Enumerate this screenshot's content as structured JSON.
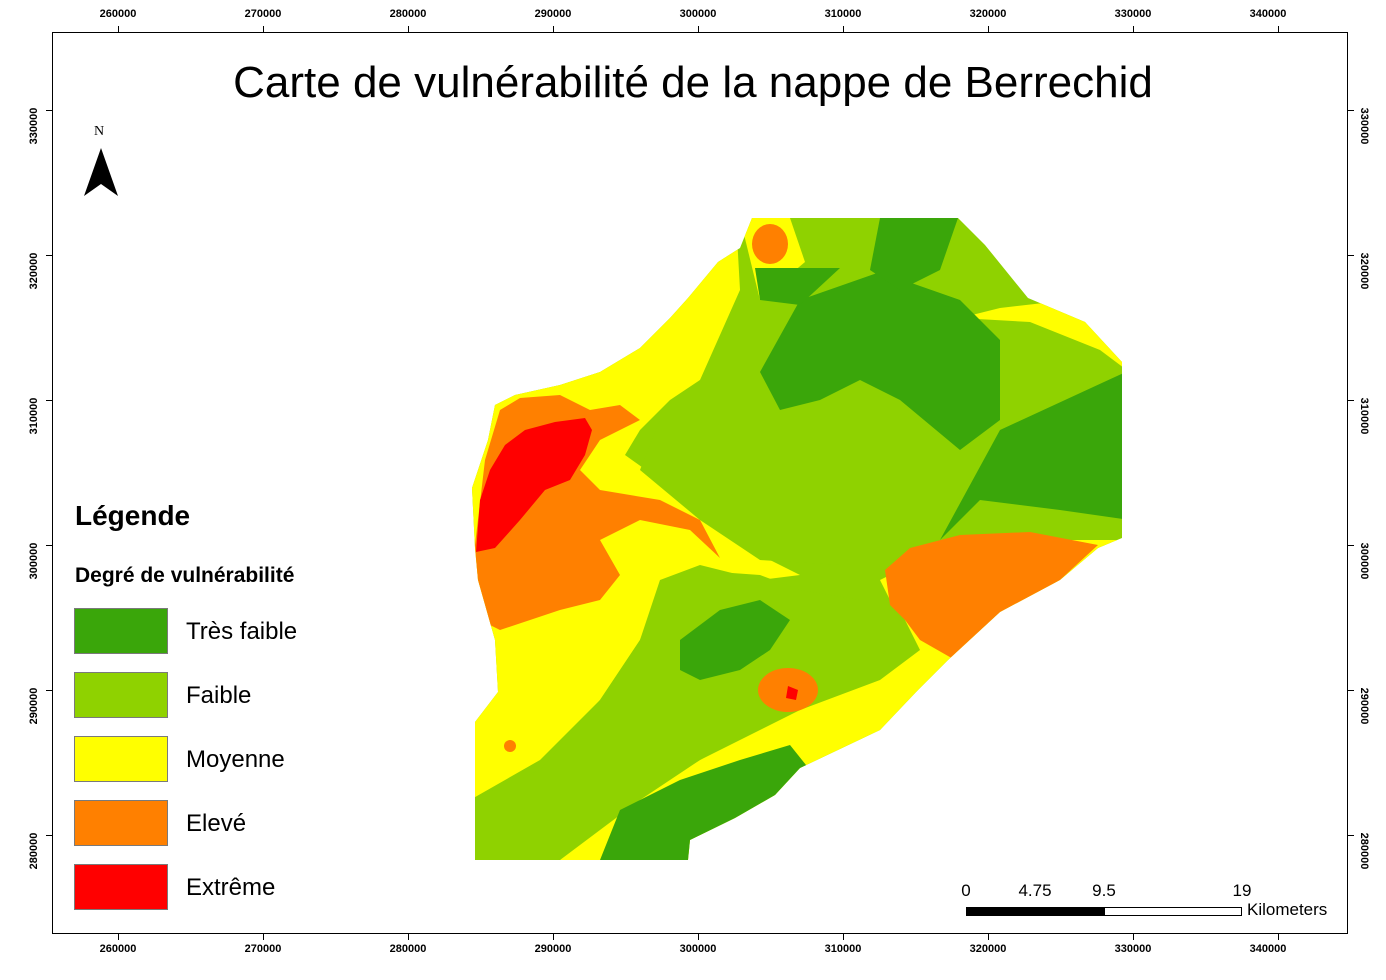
{
  "map": {
    "title": "Carte de vulnérabilité de la nappe de Berrechid",
    "north_label": "N",
    "x_ticks": [
      "260000",
      "270000",
      "280000",
      "290000",
      "300000",
      "310000",
      "320000",
      "330000",
      "340000"
    ],
    "y_ticks": [
      "330000",
      "320000",
      "310000",
      "300000",
      "290000",
      "280000"
    ]
  },
  "legend": {
    "title": "Légende",
    "subtitle": "Degré de vulnérabilité",
    "items": [
      {
        "label": "Très faible",
        "color": "#3aa60a"
      },
      {
        "label": "Faible",
        "color": "#8fd200"
      },
      {
        "label": "Moyenne",
        "color": "#ffff00"
      },
      {
        "label": "Elevé",
        "color": "#ff8000"
      },
      {
        "label": "Extrême",
        "color": "#ff0000"
      }
    ]
  },
  "scalebar": {
    "values": [
      "0",
      "4.75",
      "9.5",
      "19"
    ],
    "unit": "Kilometers"
  }
}
